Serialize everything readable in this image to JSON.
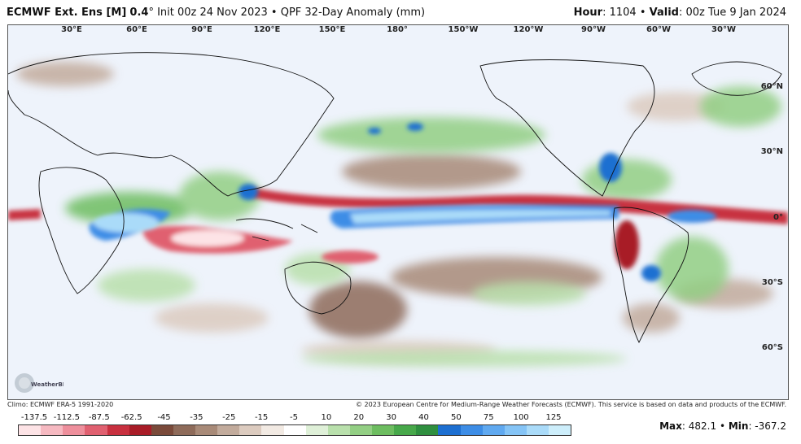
{
  "header": {
    "model": "ECMWF Ext. Ens [M]",
    "resolution": "0.4",
    "degree": "°",
    "init": "Init 00z 24 Nov 2023",
    "sep": "•",
    "product": "QPF 32-Day Anomaly (mm)",
    "hour_label": "Hour",
    "hour_value": ": 1104",
    "valid_label": "Valid",
    "valid_value": ": 00z Tue 9 Jan 2024"
  },
  "map": {
    "lon_labels": [
      "30°E",
      "60°E",
      "90°E",
      "120°E",
      "150°E",
      "180°",
      "150°W",
      "120°W",
      "90°W",
      "60°W",
      "30°W"
    ],
    "lat_labels": [
      "60°N",
      "30°N",
      "0°",
      "30°S",
      "60°S"
    ],
    "logo_text": "WeatherBELL"
  },
  "footer": {
    "climo": "Climo: ECMWF ERA-5 1991-2020",
    "copyright": "© 2023 European Centre for Medium-Range Weather Forecasts (ECMWF). This service is based on data and products of the ECMWF.",
    "max_label": "Max",
    "max_value": ": 482.1",
    "min_label": "Min",
    "min_value": ": -367.2",
    "sep": "•"
  },
  "colorbar": {
    "tick_labels": [
      "-137.5",
      "-112.5",
      "-87.5",
      "-62.5",
      "-45",
      "-35",
      "-25",
      "-15",
      "-5",
      "10",
      "20",
      "30",
      "40",
      "50",
      "75",
      "100",
      "125"
    ],
    "colors": [
      "#fde3e6",
      "#f6b9c1",
      "#ee8f9c",
      "#e06070",
      "#c8303f",
      "#a81c27",
      "#7a4a3a",
      "#8e6b5a",
      "#a88a78",
      "#c2ab9c",
      "#dccbbf",
      "#f2eae3",
      "#ffffff",
      "#dff0d8",
      "#b9e0ac",
      "#93cf84",
      "#6dbd60",
      "#47a84a",
      "#2f8f3f",
      "#1d6fd1",
      "#3d8de6",
      "#60a9f0",
      "#85c4f6",
      "#aadbf9",
      "#cdeefb"
    ]
  },
  "colors": {
    "dry": "#c8303f",
    "wet": "#1d6fd1",
    "land_line": "#111111"
  }
}
